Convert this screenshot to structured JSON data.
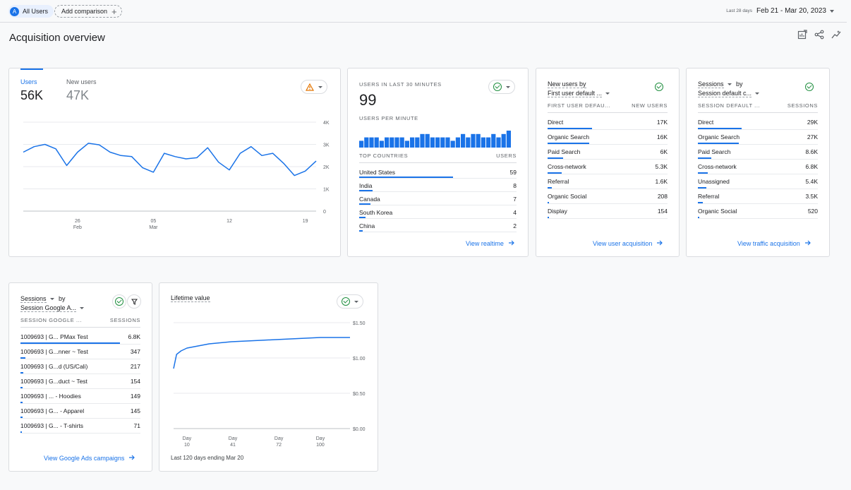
{
  "topbar": {
    "audience_initial": "A",
    "audience_label": "All Users",
    "add_comparison_label": "Add comparison",
    "date_prefix": "Last 28 days",
    "date_range": "Feb 21 - Mar 20, 2023"
  },
  "page": {
    "title": "Acquisition overview",
    "icons": [
      "edit-report-icon",
      "share-icon",
      "insights-icon"
    ]
  },
  "users_card": {
    "metrics": [
      {
        "label": "Users",
        "value": "56K",
        "active": true
      },
      {
        "label": "New users",
        "value": "47K",
        "active": false
      }
    ],
    "status_icon": "warning-icon",
    "chart_data": {
      "type": "line",
      "y_ticks": [
        "4K",
        "3K",
        "2K",
        "1K",
        "0"
      ],
      "x_ticks": [
        {
          "day": "26",
          "month": "Feb"
        },
        {
          "day": "05",
          "month": "Mar"
        },
        {
          "day": "12",
          "month": ""
        },
        {
          "day": "19",
          "month": ""
        }
      ],
      "ylim": [
        0,
        4000
      ],
      "series": [
        {
          "values": [
            2650,
            2900,
            3000,
            2800,
            2050,
            2650,
            3050,
            2980,
            2650,
            2500,
            2450,
            1950,
            1750,
            2600,
            2450,
            2350,
            2400,
            2850,
            2200,
            1850,
            2600,
            2900,
            2500,
            2600,
            2150,
            1600,
            1800,
            2250
          ]
        }
      ]
    }
  },
  "realtime_card": {
    "title": "USERS IN LAST 30 MINUTES",
    "value": "99",
    "per_minute_label": "USERS PER MINUTE",
    "chart_data": {
      "type": "bar",
      "values": [
        2,
        3,
        3,
        3,
        2,
        3,
        3,
        3,
        3,
        2,
        3,
        3,
        4,
        4,
        3,
        3,
        3,
        3,
        2,
        3,
        4,
        3,
        4,
        4,
        3,
        3,
        4,
        3,
        4,
        5
      ]
    },
    "table_head": [
      "TOP COUNTRIES",
      "USERS"
    ],
    "rows": [
      {
        "label": "United States",
        "value": "59",
        "frac": 1.0
      },
      {
        "label": "India",
        "value": "8",
        "frac": 0.14
      },
      {
        "label": "Canada",
        "value": "7",
        "frac": 0.12
      },
      {
        "label": "South Korea",
        "value": "4",
        "frac": 0.07
      },
      {
        "label": "China",
        "value": "2",
        "frac": 0.04
      }
    ],
    "link": "View realtime"
  },
  "new_users_card": {
    "title_line1": "New users by",
    "title_line2": "First user default ...",
    "table_head": [
      "FIRST USER DEFAU...",
      "NEW USERS"
    ],
    "rows": [
      {
        "label": "Direct",
        "value": "17K",
        "frac": 1.0
      },
      {
        "label": "Organic Search",
        "value": "16K",
        "frac": 0.94
      },
      {
        "label": "Paid Search",
        "value": "6K",
        "frac": 0.35
      },
      {
        "label": "Cross-network",
        "value": "5.3K",
        "frac": 0.31
      },
      {
        "label": "Referral",
        "value": "1.6K",
        "frac": 0.09
      },
      {
        "label": "Organic Social",
        "value": "208",
        "frac": 0.02
      },
      {
        "label": "Display",
        "value": "154",
        "frac": 0.01
      }
    ],
    "link": "View user acquisition"
  },
  "sessions_card": {
    "title_line1": "Sessions",
    "title_by": "by",
    "title_line2": "Session default c...",
    "table_head": [
      "SESSION DEFAULT ...",
      "SESSIONS"
    ],
    "rows": [
      {
        "label": "Direct",
        "value": "29K",
        "frac": 1.0
      },
      {
        "label": "Organic Search",
        "value": "27K",
        "frac": 0.93
      },
      {
        "label": "Paid Search",
        "value": "8.6K",
        "frac": 0.3
      },
      {
        "label": "Cross-network",
        "value": "6.8K",
        "frac": 0.23
      },
      {
        "label": "Unassigned",
        "value": "5.4K",
        "frac": 0.19
      },
      {
        "label": "Referral",
        "value": "3.5K",
        "frac": 0.12
      },
      {
        "label": "Organic Social",
        "value": "520",
        "frac": 0.02
      }
    ],
    "link": "View traffic acquisition"
  },
  "ads_card": {
    "title_line1": "Sessions",
    "title_by": "by",
    "title_line2": "Session Google A...",
    "table_head": [
      "SESSION GOOGLE ...",
      "SESSIONS"
    ],
    "rows": [
      {
        "label": "1009693 | G... PMax Test",
        "value": "6.8K",
        "frac": 1.0
      },
      {
        "label": "1009693 | G...nner ~ Test",
        "value": "347",
        "frac": 0.05
      },
      {
        "label": "1009693 | G...d (US/Cali)",
        "value": "217",
        "frac": 0.03
      },
      {
        "label": "1009693 | G...duct ~ Test",
        "value": "154",
        "frac": 0.02
      },
      {
        "label": "1009693 | ... - Hoodies",
        "value": "149",
        "frac": 0.02
      },
      {
        "label": "1009693 | G... - Apparel",
        "value": "145",
        "frac": 0.02
      },
      {
        "label": "1009693 | G... - T-shirts",
        "value": "71",
        "frac": 0.01
      }
    ],
    "link": "View Google Ads campaigns"
  },
  "ltv_card": {
    "title": "Lifetime value",
    "footer": "Last 120 days ending Mar 20",
    "chart_data": {
      "type": "line",
      "y_ticks": [
        "$1.50",
        "$1.00",
        "$0.50",
        "$0.00"
      ],
      "ylim": [
        0,
        1.5
      ],
      "xlim": [
        1,
        120
      ],
      "x_ticks": [
        {
          "label": "Day",
          "day": 10
        },
        {
          "label": "Day",
          "day": 41
        },
        {
          "label": "Day",
          "day": 72
        },
        {
          "label": "Day",
          "day": 100
        }
      ],
      "x": [
        1,
        3,
        6,
        10,
        15,
        20,
        25,
        30,
        40,
        50,
        60,
        70,
        80,
        90,
        100,
        110,
        120
      ],
      "values": [
        0.85,
        1.05,
        1.1,
        1.14,
        1.16,
        1.18,
        1.2,
        1.21,
        1.23,
        1.24,
        1.25,
        1.26,
        1.27,
        1.28,
        1.29,
        1.29,
        1.29
      ]
    }
  }
}
